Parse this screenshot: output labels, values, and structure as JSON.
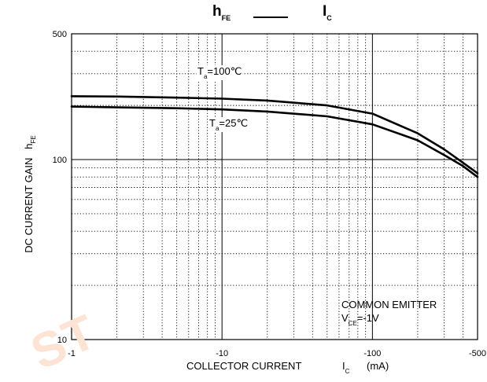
{
  "chart_data": {
    "type": "line",
    "title": {
      "left": "h",
      "left_sub": "FE",
      "right": "I",
      "right_sub": "C"
    },
    "ylabel": "DC CURRENT GAIN",
    "ylabel_symbol": "h",
    "ylabel_symbol_sub": "FE",
    "xlabel": "COLLECTOR CURRENT",
    "xlabel_symbol": "I",
    "xlabel_symbol_sub": "C",
    "xlabel_unit": "(mA)",
    "x_scale": "log",
    "y_scale": "log",
    "xlim": [
      1,
      500
    ],
    "ylim": [
      10,
      500
    ],
    "x_ticks": [
      {
        "value": 1,
        "label": "-1"
      },
      {
        "value": 10,
        "label": "-10"
      },
      {
        "value": 100,
        "label": "-100"
      },
      {
        "value": 500,
        "label": "-500"
      }
    ],
    "y_ticks": [
      {
        "value": 10,
        "label": "10"
      },
      {
        "value": 100,
        "label": "100"
      },
      {
        "value": 500,
        "label": "500"
      }
    ],
    "grid": true,
    "series": [
      {
        "name": "Ta=100℃",
        "label_main": "T",
        "label_sub": "a",
        "label_rest": "=100℃",
        "x": [
          1,
          2,
          5,
          10,
          20,
          50,
          100,
          200,
          300,
          400,
          500
        ],
        "y": [
          225,
          224,
          221,
          218,
          213,
          200,
          180,
          140,
          114,
          96,
          84
        ]
      },
      {
        "name": "Ta=25℃",
        "label_main": "T",
        "label_sub": "a",
        "label_rest": "=25℃",
        "x": [
          1,
          2,
          5,
          10,
          20,
          50,
          100,
          200,
          300,
          400,
          500
        ],
        "y": [
          197,
          195,
          193,
          190,
          185,
          174,
          157,
          128,
          106,
          92,
          80
        ]
      }
    ],
    "annotations": {
      "common_emitter": "COMMON EMITTER",
      "vce_main": "V",
      "vce_sub": "CE",
      "vce_rest": "=-1V"
    }
  },
  "watermark": "ST"
}
